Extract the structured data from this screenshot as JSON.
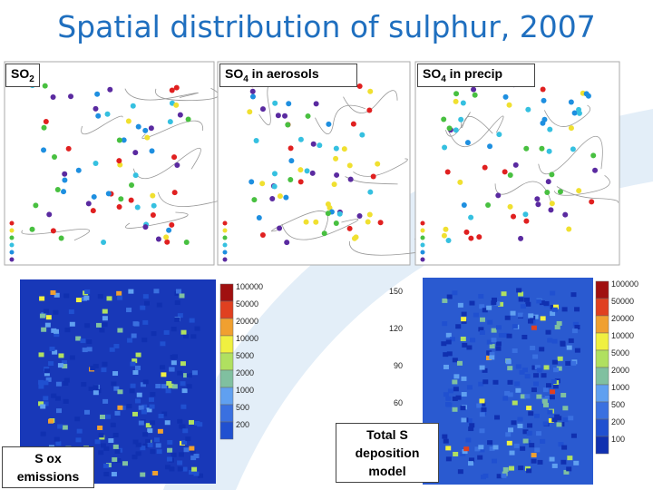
{
  "header": {
    "title": "Spatial distribution of sulphur, 2007"
  },
  "panels": [
    {
      "label": {
        "text": "SO",
        "sub": "2"
      }
    },
    {
      "label": {
        "text": "SO",
        "sub": "4",
        "rest": " in aerosols"
      }
    },
    {
      "label": {
        "text": "SO",
        "sub": "4",
        "rest": " in precip"
      }
    }
  ],
  "emissions": {
    "label": "S ox emissions",
    "colorbar": [
      "100000",
      "50000",
      "20000",
      "10000",
      "5000",
      "2000",
      "1000",
      "500",
      "200"
    ]
  },
  "deposition": {
    "label": "Total S deposition model",
    "axis": [
      "150",
      "120",
      "90",
      "60"
    ],
    "colorbar": [
      "100000",
      "50000",
      "20000",
      "10000",
      "5000",
      "2000",
      "1000",
      "500",
      "200",
      "100"
    ]
  }
}
